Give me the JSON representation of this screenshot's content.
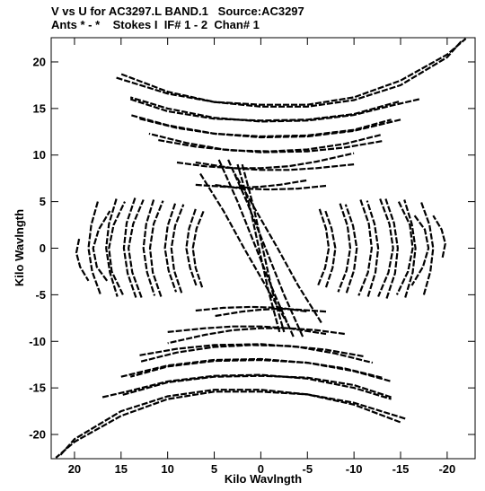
{
  "title_line1": "V vs U for AC3297.L BAND.1   Source:AC3297",
  "title_line2": "Ants * - *    Stokes I  IF# 1 - 2  Chan# 1",
  "chart_data": {
    "type": "scatter",
    "xlabel": "Kilo Wavlngth",
    "ylabel": "Kilo Wavlngth",
    "xlim": [
      22.5,
      -23.0
    ],
    "ylim": [
      -22.6,
      22.6
    ],
    "x_ticks": [
      20,
      15,
      10,
      5,
      0,
      -5,
      -10,
      -15,
      -20
    ],
    "x_tick_labels": [
      "20",
      "15",
      "10",
      "5",
      "0",
      "-5",
      "-10",
      "-15",
      "-20"
    ],
    "y_ticks": [
      20,
      15,
      10,
      5,
      0,
      -5,
      -10,
      -15,
      -20
    ],
    "y_tick_labels": [
      "20",
      "15",
      "10",
      "5",
      "0",
      "-5",
      "-10",
      "-15",
      "-20"
    ],
    "grid": false,
    "color": "#000000",
    "tracks": [
      {
        "label": "uv-track-edge-upper",
        "points": [
          [
            15.5,
            18.3
          ],
          [
            10,
            16.6
          ],
          [
            5,
            15.7
          ],
          [
            0,
            15.4
          ],
          [
            -5,
            15.4
          ],
          [
            -10,
            16.2
          ],
          [
            -15,
            18.0
          ],
          [
            -20,
            20.8
          ],
          [
            -22,
            22.5
          ]
        ]
      },
      {
        "label": "uv-track-upper-1",
        "points": [
          [
            14,
            16.0
          ],
          [
            10,
            14.7
          ],
          [
            5,
            13.9
          ],
          [
            0,
            13.7
          ],
          [
            -5,
            13.8
          ],
          [
            -10,
            14.4
          ],
          [
            -15,
            15.8
          ]
        ]
      },
      {
        "label": "uv-track-upper-2",
        "points": [
          [
            13,
            13.9
          ],
          [
            9,
            12.9
          ],
          [
            5,
            12.3
          ],
          [
            0,
            12.0
          ],
          [
            -5,
            12.1
          ],
          [
            -10,
            12.7
          ],
          [
            -14,
            13.8
          ]
        ]
      },
      {
        "label": "uv-track-upper-3",
        "points": [
          [
            11,
            11.6
          ],
          [
            7,
            10.9
          ],
          [
            3,
            10.5
          ],
          [
            -1,
            10.4
          ],
          [
            -5,
            10.6
          ],
          [
            -9,
            11.2
          ],
          [
            -13,
            12.2
          ]
        ]
      },
      {
        "label": "uv-track-upper-4",
        "points": [
          [
            9,
            9.2
          ],
          [
            6,
            8.8
          ],
          [
            3,
            8.6
          ],
          [
            0,
            8.6
          ],
          [
            -3,
            8.8
          ],
          [
            -6,
            9.3
          ],
          [
            -10,
            10.2
          ]
        ]
      },
      {
        "label": "uv-track-upper-5",
        "points": [
          [
            7,
            6.8
          ],
          [
            4,
            6.6
          ],
          [
            2,
            6.5
          ],
          [
            0,
            6.6
          ],
          [
            -2,
            6.8
          ],
          [
            -5,
            7.3
          ]
        ]
      },
      {
        "label": "uv-track-edge-lower",
        "points": [
          [
            21.5,
            -22.2
          ],
          [
            20,
            -20.5
          ],
          [
            15,
            -17.5
          ],
          [
            10,
            -15.9
          ],
          [
            5,
            -15.2
          ],
          [
            0,
            -15.2
          ],
          [
            -5,
            -15.7
          ],
          [
            -10,
            -16.8
          ],
          [
            -15,
            -18.7
          ]
        ]
      },
      {
        "label": "uv-track-lower-1",
        "points": [
          [
            17,
            -16.0
          ],
          [
            14,
            -15.3
          ],
          [
            10,
            -14.3
          ],
          [
            5,
            -13.7
          ],
          [
            0,
            -13.6
          ],
          [
            -5,
            -14.0
          ],
          [
            -10,
            -15.0
          ],
          [
            -14,
            -16.2
          ]
        ]
      },
      {
        "label": "uv-track-lower-2",
        "points": [
          [
            15,
            -13.8
          ],
          [
            10,
            -12.6
          ],
          [
            5,
            -12.0
          ],
          [
            0,
            -11.9
          ],
          [
            -5,
            -12.3
          ],
          [
            -10,
            -13.2
          ],
          [
            -14,
            -14.3
          ]
        ]
      },
      {
        "label": "uv-track-lower-3",
        "points": [
          [
            13,
            -11.5
          ],
          [
            9,
            -10.8
          ],
          [
            5,
            -10.4
          ],
          [
            0,
            -10.3
          ],
          [
            -4,
            -10.6
          ],
          [
            -8,
            -11.3
          ],
          [
            -12,
            -12.3
          ]
        ]
      },
      {
        "label": "uv-track-lower-4",
        "points": [
          [
            10,
            -9.0
          ],
          [
            6,
            -8.6
          ],
          [
            3,
            -8.4
          ],
          [
            0,
            -8.4
          ],
          [
            -3,
            -8.6
          ],
          [
            -7,
            -9.2
          ]
        ]
      },
      {
        "label": "uv-track-lower-5",
        "points": [
          [
            7,
            -6.7
          ],
          [
            4,
            -6.4
          ],
          [
            1,
            -6.3
          ],
          [
            -2,
            -6.4
          ],
          [
            -5,
            -6.8
          ]
        ]
      },
      {
        "label": "uv-track-left-1",
        "points": [
          [
            19.5,
            1.0
          ],
          [
            19.8,
            -0.5
          ],
          [
            19.4,
            -2.0
          ],
          [
            18.5,
            -3.5
          ]
        ]
      },
      {
        "label": "uv-track-left-2",
        "points": [
          [
            17.5,
            5.0
          ],
          [
            18.2,
            2.5
          ],
          [
            18.5,
            0
          ],
          [
            18.1,
            -2.5
          ],
          [
            17.2,
            -5.0
          ]
        ]
      },
      {
        "label": "uv-track-left-3",
        "points": [
          [
            15.5,
            5.3
          ],
          [
            16.3,
            2.6
          ],
          [
            16.6,
            0
          ],
          [
            16.2,
            -2.6
          ],
          [
            15.4,
            -5.2
          ]
        ]
      },
      {
        "label": "uv-track-left-4",
        "points": [
          [
            13.5,
            5.4
          ],
          [
            14.4,
            2.7
          ],
          [
            14.7,
            0
          ],
          [
            14.3,
            -2.7
          ],
          [
            13.4,
            -5.3
          ]
        ]
      },
      {
        "label": "uv-track-left-5",
        "points": [
          [
            11.5,
            5.2
          ],
          [
            12.3,
            2.6
          ],
          [
            12.6,
            0
          ],
          [
            12.2,
            -2.6
          ],
          [
            11.4,
            -5.1
          ]
        ]
      },
      {
        "label": "uv-track-left-6",
        "points": [
          [
            9.2,
            4.8
          ],
          [
            10.0,
            2.4
          ],
          [
            10.3,
            0
          ],
          [
            9.9,
            -2.4
          ],
          [
            9.1,
            -4.7
          ]
        ]
      },
      {
        "label": "uv-track-left-7",
        "points": [
          [
            7.0,
            4.2
          ],
          [
            7.7,
            2.1
          ],
          [
            8.0,
            0
          ],
          [
            7.6,
            -2.1
          ],
          [
            6.9,
            -4.1
          ]
        ]
      },
      {
        "label": "uv-track-right-1",
        "points": [
          [
            -16.5,
            3.5
          ],
          [
            -17.6,
            2.0
          ],
          [
            -18.0,
            0
          ],
          [
            -17.4,
            -2.0
          ],
          [
            -16.2,
            -4.0
          ]
        ]
      },
      {
        "label": "uv-track-right-2",
        "points": [
          [
            -14.8,
            5.0
          ],
          [
            -16.0,
            2.5
          ],
          [
            -16.3,
            0
          ],
          [
            -15.8,
            -2.5
          ],
          [
            -14.6,
            -5.0
          ]
        ]
      },
      {
        "label": "uv-track-right-3",
        "points": [
          [
            -12.8,
            5.3
          ],
          [
            -13.8,
            2.6
          ],
          [
            -14.2,
            0
          ],
          [
            -13.7,
            -2.6
          ],
          [
            -12.6,
            -5.2
          ]
        ]
      },
      {
        "label": "uv-track-right-4",
        "points": [
          [
            -10.7,
            5.2
          ],
          [
            -11.6,
            2.6
          ],
          [
            -11.9,
            0
          ],
          [
            -11.5,
            -2.6
          ],
          [
            -10.5,
            -5.1
          ]
        ]
      },
      {
        "label": "uv-track-right-5",
        "points": [
          [
            -8.5,
            4.8
          ],
          [
            -9.3,
            2.4
          ],
          [
            -9.6,
            0
          ],
          [
            -9.2,
            -2.4
          ],
          [
            -8.3,
            -4.7
          ]
        ]
      },
      {
        "label": "uv-track-right-6",
        "points": [
          [
            -6.3,
            4.2
          ],
          [
            -7.0,
            2.1
          ],
          [
            -7.3,
            0
          ],
          [
            -6.9,
            -2.1
          ],
          [
            -6.1,
            -4.1
          ]
        ]
      },
      {
        "label": "uv-track-center-diag-1",
        "points": [
          [
            4.5,
            9.5
          ],
          [
            2.5,
            5.0
          ],
          [
            0.5,
            0
          ],
          [
            -1.5,
            -5.0
          ],
          [
            -3.5,
            -9.5
          ]
        ]
      },
      {
        "label": "uv-track-center-diag-2",
        "points": [
          [
            2.0,
            9.0
          ],
          [
            0.8,
            4.5
          ],
          [
            -0.2,
            0
          ],
          [
            -1.2,
            -4.5
          ],
          [
            -2.5,
            -9.0
          ]
        ]
      },
      {
        "label": "uv-track-center-diag-3",
        "points": [
          [
            6.5,
            8.0
          ],
          [
            4.0,
            4.0
          ],
          [
            1.8,
            0
          ],
          [
            -0.5,
            -4.0
          ],
          [
            -2.8,
            -8.0
          ]
        ]
      }
    ]
  }
}
